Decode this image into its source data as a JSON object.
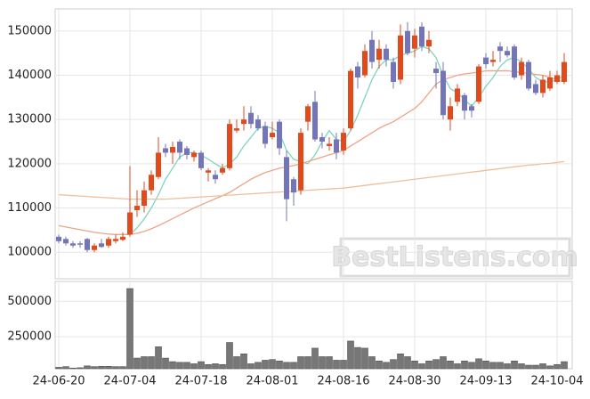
{
  "chart_data": {
    "type": "candlestick",
    "watermark": "BestListens.com",
    "categories": [
      "24-06-20",
      null,
      null,
      null,
      null,
      null,
      null,
      null,
      null,
      null,
      "24-07-04",
      null,
      null,
      null,
      null,
      null,
      null,
      null,
      null,
      null,
      "24-07-18",
      null,
      null,
      null,
      null,
      null,
      null,
      null,
      null,
      null,
      "24-08-01",
      null,
      null,
      null,
      null,
      null,
      null,
      null,
      null,
      null,
      "24-08-16",
      null,
      null,
      null,
      null,
      null,
      null,
      null,
      null,
      null,
      "24-08-30",
      null,
      null,
      null,
      null,
      null,
      null,
      null,
      null,
      null,
      "24-09-13",
      null,
      null,
      null,
      null,
      null,
      null,
      null,
      null,
      null,
      "24-10-04",
      null
    ],
    "open": [
      103500,
      103000,
      102000,
      102000,
      103000,
      100500,
      102000,
      101500,
      102500,
      102800,
      104000,
      109500,
      110500,
      114000,
      117000,
      123500,
      122500,
      125000,
      123500,
      121500,
      122500,
      118000,
      117500,
      118000,
      119000,
      127500,
      129000,
      131500,
      130000,
      128500,
      126000,
      129500,
      121500,
      116500,
      114000,
      129500,
      134000,
      126000,
      124000,
      125500,
      123000,
      128000,
      142000,
      140000,
      148000,
      143500,
      146000,
      143000,
      139000,
      150000,
      146000,
      151000,
      146500,
      141500,
      141000,
      130000,
      134000,
      135500,
      133000,
      134000,
      144000,
      143000,
      146500,
      145500,
      146500,
      140000,
      143000,
      138000,
      136000,
      137000,
      138500,
      138500
    ],
    "high": [
      104000,
      103500,
      102500,
      102500,
      103200,
      102000,
      103000,
      103500,
      104000,
      104500,
      119500,
      114000,
      116000,
      118500,
      126000,
      124500,
      125000,
      125500,
      124000,
      123000,
      123000,
      119000,
      118500,
      120000,
      130000,
      130000,
      133000,
      133000,
      131000,
      129500,
      129500,
      130000,
      123000,
      117000,
      128000,
      133500,
      136500,
      127000,
      126000,
      127000,
      128000,
      141500,
      143000,
      147000,
      150000,
      148000,
      147000,
      144000,
      151500,
      152000,
      150500,
      152000,
      150000,
      143000,
      143000,
      135000,
      138000,
      136000,
      133500,
      142500,
      145000,
      145500,
      147500,
      146500,
      147000,
      144000,
      143500,
      139000,
      140000,
      141000,
      141000,
      145000
    ],
    "low": [
      102000,
      101500,
      101000,
      101000,
      100000,
      100000,
      101000,
      101000,
      102000,
      102500,
      103500,
      108000,
      109000,
      113000,
      116500,
      121500,
      120000,
      121000,
      121000,
      120500,
      118500,
      116000,
      115500,
      117500,
      118500,
      127000,
      127500,
      128000,
      127500,
      123500,
      125500,
      122000,
      107000,
      110500,
      113000,
      127500,
      125000,
      123500,
      123000,
      121000,
      122000,
      127500,
      137000,
      139500,
      141500,
      141500,
      142000,
      137000,
      138000,
      144500,
      144000,
      145500,
      145000,
      137000,
      130000,
      127500,
      133000,
      130000,
      130500,
      133500,
      141500,
      142000,
      143000,
      144000,
      139000,
      139000,
      136500,
      135500,
      135000,
      136500,
      138000,
      138000
    ],
    "close": [
      102500,
      102000,
      101500,
      101700,
      100500,
      101500,
      101200,
      103000,
      103000,
      103500,
      109000,
      110500,
      114000,
      117500,
      122500,
      122500,
      123800,
      122500,
      122000,
      122500,
      119000,
      118500,
      116500,
      119000,
      129000,
      128000,
      130000,
      129000,
      128000,
      124500,
      127000,
      123500,
      112000,
      113500,
      127000,
      133000,
      125500,
      125000,
      124500,
      122500,
      127000,
      141000,
      139500,
      145500,
      143000,
      146000,
      143500,
      138500,
      149000,
      145000,
      149000,
      146500,
      148000,
      140500,
      131000,
      133000,
      137000,
      132000,
      132000,
      142000,
      142500,
      143500,
      145500,
      144500,
      139500,
      143000,
      137000,
      136000,
      139000,
      139500,
      140000,
      143000
    ],
    "up_color": "#e24a1b",
    "down_color": "#7474bb",
    "lines": [
      {
        "color": "#7fd4bd",
        "values": [
          null,
          null,
          null,
          null,
          null,
          null,
          null,
          null,
          null,
          null,
          104000,
          105500,
          107500,
          110000,
          113000,
          116500,
          119000,
          121500,
          122500,
          122500,
          122000,
          121000,
          120000,
          119000,
          120000,
          121500,
          124000,
          126000,
          128000,
          128500,
          128000,
          127000,
          123000,
          121000,
          120500,
          120000,
          122000,
          125000,
          127500,
          125500,
          125000,
          127500,
          131000,
          135000,
          139000,
          142000,
          143500,
          143500,
          144500,
          145000,
          145500,
          146500,
          146000,
          144000,
          140000,
          137000,
          136000,
          134500,
          133000,
          135000,
          137500,
          139500,
          142000,
          143500,
          144000,
          143000,
          141500,
          139500,
          138500,
          138500,
          139000,
          140000
        ]
      },
      {
        "color": "#eea487",
        "values": [
          106000,
          105700,
          105400,
          105100,
          104800,
          104500,
          104300,
          104100,
          104000,
          104000,
          104000,
          104300,
          104700,
          105300,
          106000,
          106800,
          107600,
          108400,
          109200,
          110000,
          110700,
          111400,
          112100,
          112800,
          113500,
          114500,
          115500,
          116500,
          117300,
          118000,
          118500,
          119000,
          119300,
          119600,
          120000,
          120500,
          121000,
          121500,
          122000,
          122500,
          123000,
          124000,
          125000,
          126000,
          127000,
          128000,
          128800,
          129500,
          130500,
          131500,
          132500,
          134000,
          136000,
          138000,
          139000,
          139500,
          140000,
          140300,
          140500,
          140700,
          141000,
          141000,
          141000,
          141000,
          140800,
          140600,
          140400,
          140200,
          140000,
          139500,
          139000,
          138500
        ]
      },
      {
        "color": "#efbf9a",
        "values": [
          113000,
          112900,
          112800,
          112700,
          112600,
          112500,
          112400,
          112300,
          112200,
          112100,
          112000,
          112000,
          112000,
          112000,
          112000,
          112000,
          112100,
          112200,
          112300,
          112400,
          112500,
          112600,
          112700,
          112800,
          112900,
          113000,
          113100,
          113200,
          113300,
          113400,
          113500,
          113600,
          113700,
          113800,
          113900,
          114000,
          114100,
          114200,
          114300,
          114400,
          114500,
          114700,
          114900,
          115100,
          115300,
          115500,
          115700,
          115900,
          116100,
          116300,
          116500,
          116700,
          116900,
          117100,
          117300,
          117500,
          117700,
          117900,
          118100,
          118300,
          118500,
          118700,
          118900,
          119100,
          119300,
          119500,
          119700,
          119800,
          120000,
          120100,
          120300,
          120500
        ]
      }
    ],
    "ylim": [
      94000,
      155000
    ],
    "yticks": [
      100000,
      110000,
      120000,
      130000,
      140000,
      150000
    ],
    "volume": [
      35000,
      40000,
      30000,
      32000,
      45000,
      40000,
      42000,
      42000,
      40000,
      40000,
      590000,
      100000,
      110000,
      110000,
      180000,
      100000,
      75000,
      70000,
      70000,
      60000,
      75000,
      55000,
      60000,
      55000,
      210000,
      110000,
      130000,
      60000,
      70000,
      85000,
      90000,
      80000,
      70000,
      70000,
      110000,
      110000,
      170000,
      110000,
      110000,
      85000,
      85000,
      220000,
      175000,
      170000,
      110000,
      80000,
      70000,
      90000,
      130000,
      110000,
      80000,
      60000,
      80000,
      90000,
      110000,
      80000,
      60000,
      80000,
      70000,
      95000,
      80000,
      70000,
      70000,
      60000,
      80000,
      60000,
      50000,
      50000,
      60000,
      45000,
      55000,
      75000
    ],
    "volume_color": "#777777",
    "vlim": [
      25000,
      640000
    ],
    "vticks": [
      250000,
      500000
    ],
    "grid": true
  }
}
